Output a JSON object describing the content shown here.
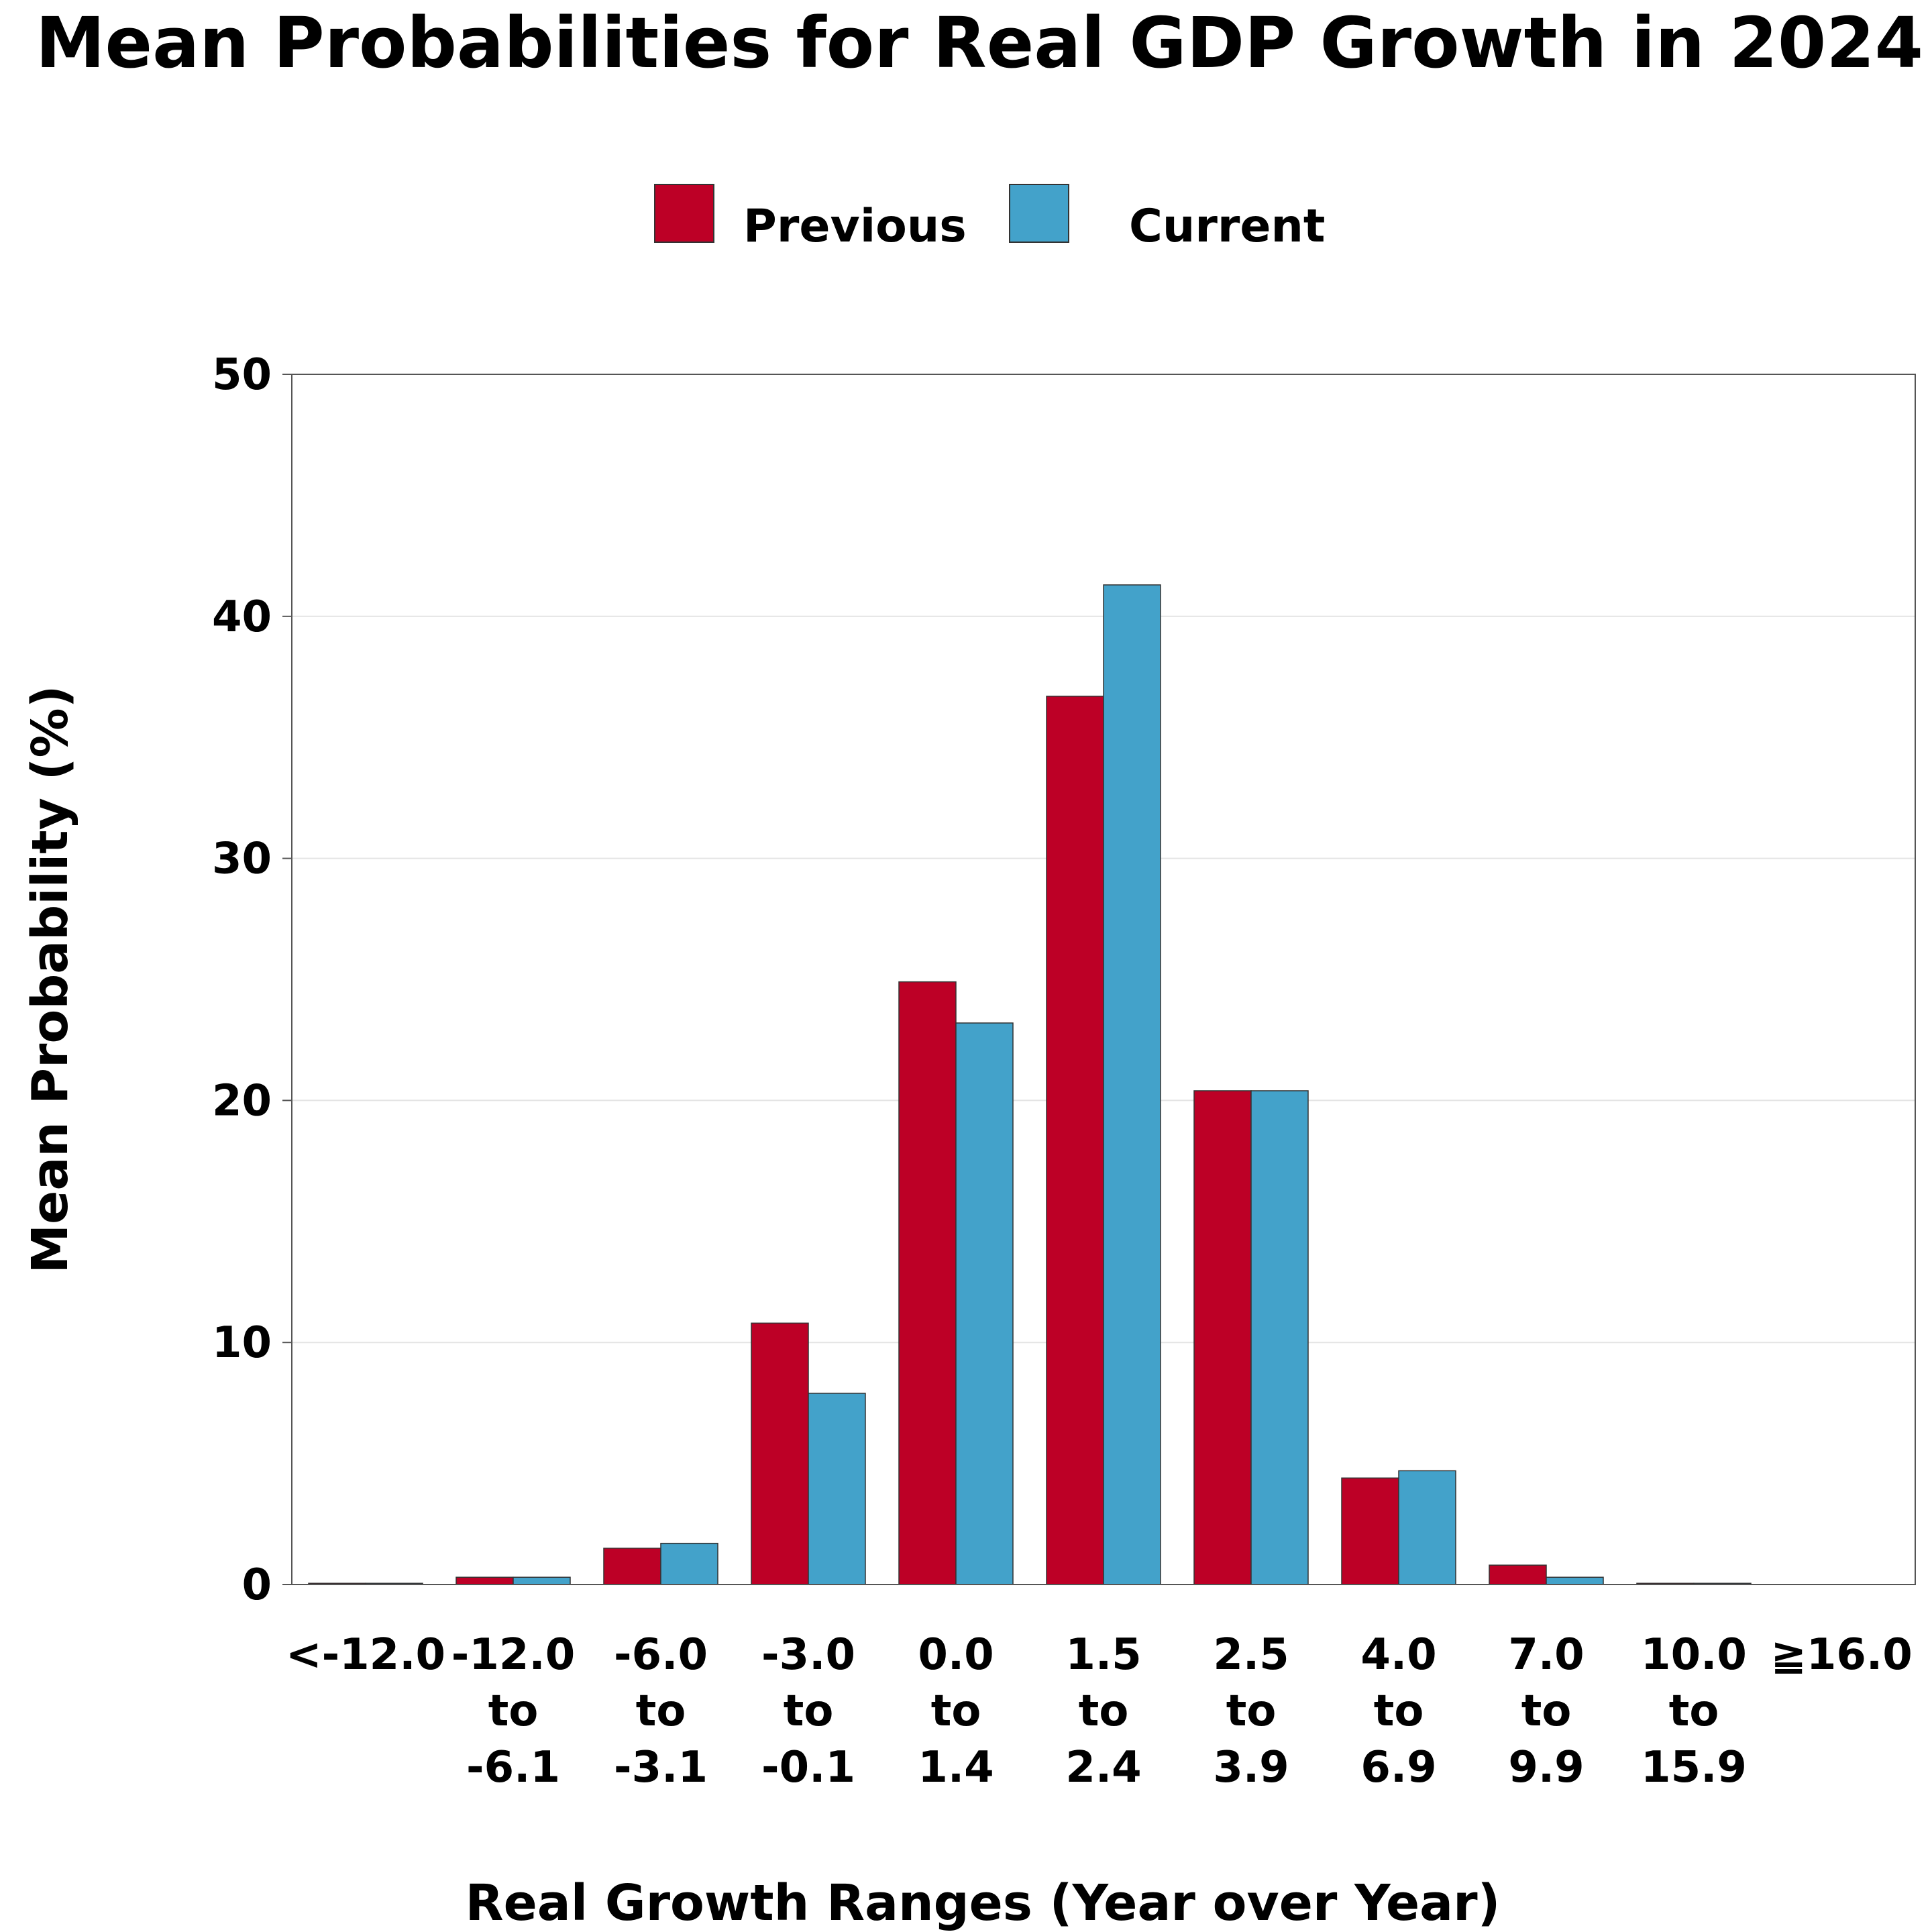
{
  "chart_data": {
    "type": "bar",
    "title": "Mean Probabilities for Real GDP Growth in 2024",
    "xlabel": "Real Growth Ranges (Year over Year)",
    "ylabel": "Mean Probability (%)",
    "ylim": [
      0,
      50
    ],
    "yticks": [
      0,
      10,
      20,
      30,
      40,
      50
    ],
    "grid": "horizontal",
    "legend_placement": "top-center",
    "categories": [
      [
        "<-12.0"
      ],
      [
        "-12.0",
        "to",
        "-6.1"
      ],
      [
        "-6.0",
        "to",
        "-3.1"
      ],
      [
        "-3.0",
        "to",
        "-0.1"
      ],
      [
        "0.0",
        "to",
        "1.4"
      ],
      [
        "1.5",
        "to",
        "2.4"
      ],
      [
        "2.5",
        "to",
        "3.9"
      ],
      [
        "4.0",
        "to",
        "6.9"
      ],
      [
        "7.0",
        "to",
        "9.9"
      ],
      [
        "10.0",
        "to",
        "15.9"
      ],
      [
        "≧16.0"
      ]
    ],
    "series": [
      {
        "name": "Previous",
        "color": "#bd0026",
        "values": [
          0.05,
          0.3,
          1.5,
          10.8,
          24.9,
          36.7,
          20.4,
          4.4,
          0.8,
          0.05,
          0
        ]
      },
      {
        "name": "Current",
        "color": "#43a2ca",
        "values": [
          0.05,
          0.3,
          1.7,
          7.9,
          23.2,
          41.3,
          20.4,
          4.7,
          0.3,
          0.05,
          0
        ]
      }
    ]
  }
}
